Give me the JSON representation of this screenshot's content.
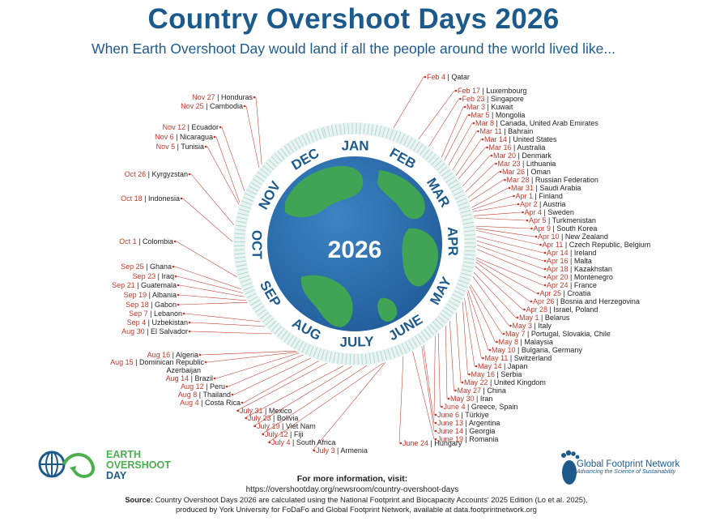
{
  "header": {
    "title": "Country Overshoot Days 2026",
    "subtitle": "When Earth Overshoot Day would land if all the people around the world lived like..."
  },
  "globe": {
    "year_label": "2026"
  },
  "colors": {
    "title": "#1d5a8c",
    "date": "#c0392b",
    "ocean": "#2a6aa8",
    "land": "#3fa554",
    "month_ring": "#ffffff",
    "tick_ring": "#a9d6cc"
  },
  "footer": {
    "more_info_label": "For more information, visit:",
    "more_info_url": "https://overshootday.org/newsroom/country-overshoot-days",
    "source_label": "Source:",
    "source_text": "Country Overshoot Days 2026 are calculated using the National Footprint and Biocapacity Accounts' 2025 Edition (Lo et al. 2025),",
    "source_text_2": "produced by York University for FoDaFo and Global Footprint Network, available at data.footprintnetwork.org"
  },
  "logos": {
    "eod": {
      "line1": "EARTH",
      "line2": "OVERSHOOT",
      "line3": "DAY"
    },
    "gfn": {
      "name": "Global Footprint Network",
      "tagline": "Advancing the Science of Sustainability"
    }
  },
  "chart_data": {
    "type": "radial-timeline",
    "months": [
      "JAN",
      "FEB",
      "MAR",
      "APR",
      "MAY",
      "JUNE",
      "JULY",
      "AUG",
      "SEP",
      "OCT",
      "NOV",
      "DEC"
    ],
    "labels_right": [
      {
        "date": "Feb 4",
        "country": "Qatar"
      },
      {
        "date": "Feb 17",
        "country": "Luxembourg"
      },
      {
        "date": "Feb 23",
        "country": "Singapore"
      },
      {
        "date": "Mar 3",
        "country": "Kuwait"
      },
      {
        "date": "Mar 5",
        "country": "Mongolia"
      },
      {
        "date": "Mar 8",
        "country": "Canada, United Arab Emirates"
      },
      {
        "date": "Mar 11",
        "country": "Bahrain"
      },
      {
        "date": "Mar 14",
        "country": "United States"
      },
      {
        "date": "Mar 16",
        "country": "Australia"
      },
      {
        "date": "Mar 20",
        "country": "Denmark"
      },
      {
        "date": "Mar 23",
        "country": "Lithuania"
      },
      {
        "date": "Mar 26",
        "country": "Oman"
      },
      {
        "date": "Mar 28",
        "country": "Russian Federation"
      },
      {
        "date": "Mar 31",
        "country": "Saudi Arabia"
      },
      {
        "date": "Apr 1",
        "country": "Finland"
      },
      {
        "date": "Apr 2",
        "country": "Austria"
      },
      {
        "date": "Apr 4",
        "country": "Sweden"
      },
      {
        "date": "Apr 5",
        "country": "Turkmenistan"
      },
      {
        "date": "Apr 9",
        "country": "South Korea"
      },
      {
        "date": "Apr 10",
        "country": "New Zealand"
      },
      {
        "date": "Apr 11",
        "country": "Czech Republic, Belgium"
      },
      {
        "date": "Apr 14",
        "country": "Ireland"
      },
      {
        "date": "Apr 16",
        "country": "Malta"
      },
      {
        "date": "Apr 18",
        "country": "Kazakhstan"
      },
      {
        "date": "Apr 20",
        "country": "Montenegro"
      },
      {
        "date": "Apr 24",
        "country": "France"
      },
      {
        "date": "Apr 25",
        "country": "Croatia"
      },
      {
        "date": "Apr 26",
        "country": "Bosnia and Herzegovina"
      },
      {
        "date": "Apr 28",
        "country": "Israel, Poland"
      },
      {
        "date": "May 1",
        "country": "Belarus"
      },
      {
        "date": "May 3",
        "country": "Italy"
      },
      {
        "date": "May 7",
        "country": "Portugal, Slovakia, Chile"
      },
      {
        "date": "May 8",
        "country": "Malaysia"
      },
      {
        "date": "May 10",
        "country": "Bulgaria, Germany"
      },
      {
        "date": "May 11",
        "country": "Switzerland"
      },
      {
        "date": "May 14",
        "country": "Japan"
      },
      {
        "date": "May 16",
        "country": "Serbia"
      },
      {
        "date": "May 22",
        "country": "United Kingdom"
      },
      {
        "date": "May 27",
        "country": "China"
      },
      {
        "date": "May 30",
        "country": "Iran"
      },
      {
        "date": "June 4",
        "country": "Greece, Spain"
      },
      {
        "date": "June 6",
        "country": "Türkiye"
      },
      {
        "date": "June 13",
        "country": "Argentina"
      },
      {
        "date": "June 14",
        "country": "Georgia"
      },
      {
        "date": "June 19",
        "country": "Romania"
      }
    ],
    "labels_bottom": [
      {
        "date": "June 24",
        "country": "Hungary"
      },
      {
        "date": "July 3",
        "country": "Armenia"
      },
      {
        "date": "July 4",
        "country": "South Africa"
      },
      {
        "date": "July 12",
        "country": "Fiji"
      },
      {
        "date": "July 19",
        "country": "Viet Nam"
      },
      {
        "date": "July 23",
        "country": "Bolivia"
      },
      {
        "date": "July 31",
        "country": "Mexico"
      }
    ],
    "labels_left": [
      {
        "date": "Aug 4",
        "country": "Costa Rica"
      },
      {
        "date": "Aug 8",
        "country": "Thailand"
      },
      {
        "date": "Aug 12",
        "country": "Peru"
      },
      {
        "date": "Aug 14",
        "country": "Brazil"
      },
      {
        "date": "",
        "country": "Azerbaijan"
      },
      {
        "date": "Aug 15",
        "country": "Dominican Republic"
      },
      {
        "date": "Aug 16",
        "country": "Algeria"
      },
      {
        "date": "Aug 30",
        "country": "El Salvador"
      },
      {
        "date": "Sep 4",
        "country": "Uzbekistan"
      },
      {
        "date": "Sep 7",
        "country": "Lebanon"
      },
      {
        "date": "Sep 18",
        "country": "Gabon"
      },
      {
        "date": "Sep 19",
        "country": "Albania"
      },
      {
        "date": "Sep 21",
        "country": "Guatemala"
      },
      {
        "date": "Sep 23",
        "country": "Iraq"
      },
      {
        "date": "Sep 25",
        "country": "Ghana"
      },
      {
        "date": "Oct 1",
        "country": "Colombia"
      },
      {
        "date": "Oct 18",
        "country": "Indonesia"
      },
      {
        "date": "Oct 26",
        "country": "Kyrgyzstan"
      },
      {
        "date": "Nov 5",
        "country": "Tunisia"
      },
      {
        "date": "Nov 6",
        "country": "Nicaragua"
      },
      {
        "date": "Nov 12",
        "country": "Ecuador"
      },
      {
        "date": "Nov 25",
        "country": "Cambodia"
      },
      {
        "date": "Nov 27",
        "country": "Honduras"
      }
    ]
  }
}
